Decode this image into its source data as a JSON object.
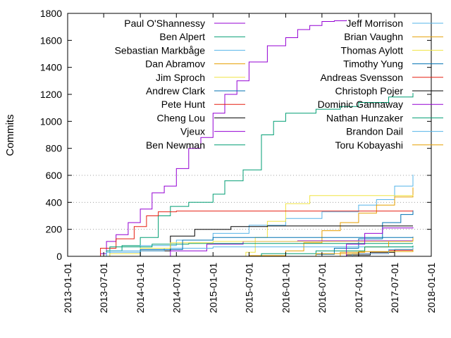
{
  "chart_data": {
    "type": "line",
    "title": "",
    "xlabel": "",
    "ylabel": "Commits",
    "x_range": [
      "2013-01-01",
      "2018-01-01"
    ],
    "x_ticks": [
      "2013-01-01",
      "2013-07-01",
      "2014-01-01",
      "2014-07-01",
      "2015-01-01",
      "2015-07-01",
      "2016-01-01",
      "2016-07-01",
      "2017-01-01",
      "2017-07-01",
      "2018-01-01"
    ],
    "ylim": [
      0,
      1800
    ],
    "y_ticks": [
      0,
      200,
      400,
      600,
      800,
      1000,
      1200,
      1400,
      1600,
      1800
    ],
    "grid": {
      "y": true,
      "y_from": 200,
      "y_to": 600,
      "x": false
    },
    "step": true,
    "legend": "top, two columns",
    "series": [
      {
        "name": "Paul O'Shannessy",
        "color": "#9400d3",
        "points": [
          [
            "2013-05-20",
            0
          ],
          [
            "2013-06-15",
            20
          ],
          [
            "2013-07-15",
            110
          ],
          [
            "2013-09-01",
            160
          ],
          [
            "2013-11-01",
            250
          ],
          [
            "2014-01-01",
            350
          ],
          [
            "2014-03-01",
            470
          ],
          [
            "2014-05-01",
            520
          ],
          [
            "2014-07-01",
            650
          ],
          [
            "2014-09-01",
            800
          ],
          [
            "2014-11-01",
            880
          ],
          [
            "2015-01-01",
            1060
          ],
          [
            "2015-03-01",
            1200
          ],
          [
            "2015-05-01",
            1300
          ],
          [
            "2015-07-01",
            1440
          ],
          [
            "2015-10-01",
            1560
          ],
          [
            "2016-01-01",
            1620
          ],
          [
            "2016-03-01",
            1680
          ],
          [
            "2016-05-01",
            1710
          ],
          [
            "2016-07-01",
            1740
          ],
          [
            "2016-09-01",
            1745
          ],
          [
            "2016-11-01",
            1750
          ]
        ]
      },
      {
        "name": "Ben Alpert",
        "color": "#009e73",
        "points": [
          [
            "2013-06-01",
            0
          ],
          [
            "2013-07-15",
            40
          ],
          [
            "2013-10-01",
            80
          ],
          [
            "2014-01-01",
            140
          ],
          [
            "2014-04-01",
            300
          ],
          [
            "2014-06-01",
            370
          ],
          [
            "2014-09-01",
            400
          ],
          [
            "2015-01-01",
            460
          ],
          [
            "2015-03-01",
            560
          ],
          [
            "2015-06-01",
            640
          ],
          [
            "2015-09-01",
            900
          ],
          [
            "2015-11-01",
            1000
          ],
          [
            "2016-01-01",
            1060
          ],
          [
            "2016-06-01",
            1090
          ],
          [
            "2016-10-01",
            1110
          ],
          [
            "2017-01-01",
            1140
          ],
          [
            "2017-06-01",
            1180
          ],
          [
            "2017-10-01",
            1210
          ]
        ]
      },
      {
        "name": "Sebastian Markbåge",
        "color": "#56b4e9",
        "points": [
          [
            "2013-06-01",
            0
          ],
          [
            "2013-07-15",
            30
          ],
          [
            "2014-01-01",
            80
          ],
          [
            "2014-07-01",
            120
          ],
          [
            "2015-01-01",
            170
          ],
          [
            "2015-07-01",
            230
          ],
          [
            "2016-01-01",
            280
          ],
          [
            "2016-07-01",
            330
          ],
          [
            "2017-01-01",
            380
          ],
          [
            "2017-04-01",
            420
          ],
          [
            "2017-07-01",
            520
          ],
          [
            "2017-10-01",
            605
          ]
        ]
      },
      {
        "name": "Dan Abramov",
        "color": "#e69f00",
        "points": [
          [
            "2015-05-01",
            0
          ],
          [
            "2015-07-01",
            5
          ],
          [
            "2016-01-01",
            40
          ],
          [
            "2016-04-01",
            100
          ],
          [
            "2016-07-01",
            190
          ],
          [
            "2016-10-01",
            250
          ],
          [
            "2017-01-01",
            320
          ],
          [
            "2017-04-01",
            380
          ],
          [
            "2017-07-01",
            440
          ],
          [
            "2017-10-01",
            510
          ]
        ]
      },
      {
        "name": "Jim Sproch",
        "color": "#f0e442",
        "points": [
          [
            "2015-05-01",
            0
          ],
          [
            "2015-06-15",
            30
          ],
          [
            "2015-08-01",
            140
          ],
          [
            "2015-10-01",
            260
          ],
          [
            "2016-01-01",
            390
          ],
          [
            "2016-05-01",
            450
          ],
          [
            "2017-10-01",
            455
          ]
        ]
      },
      {
        "name": "Andrew Clark",
        "color": "#0072b2",
        "points": [
          [
            "2015-12-01",
            0
          ],
          [
            "2016-06-01",
            15
          ],
          [
            "2016-09-01",
            60
          ],
          [
            "2017-01-01",
            130
          ],
          [
            "2017-05-01",
            250
          ],
          [
            "2017-08-01",
            310
          ],
          [
            "2017-10-01",
            340
          ]
        ]
      },
      {
        "name": "Pete Hunt",
        "color": "#e51e10",
        "points": [
          [
            "2013-05-20",
            0
          ],
          [
            "2013-06-15",
            60
          ],
          [
            "2013-09-01",
            130
          ],
          [
            "2013-12-01",
            220
          ],
          [
            "2014-02-01",
            300
          ],
          [
            "2014-04-01",
            330
          ],
          [
            "2014-07-01",
            335
          ],
          [
            "2017-10-01",
            335
          ]
        ]
      },
      {
        "name": "Cheng Lou",
        "color": "#000000",
        "points": [
          [
            "2013-08-01",
            0
          ],
          [
            "2014-01-01",
            40
          ],
          [
            "2014-06-01",
            150
          ],
          [
            "2014-10-01",
            200
          ],
          [
            "2015-04-01",
            220
          ],
          [
            "2015-10-01",
            225
          ],
          [
            "2017-10-01",
            225
          ]
        ]
      },
      {
        "name": "Vjeux",
        "color": "#9400d3",
        "points": [
          [
            "2014-01-01",
            0
          ],
          [
            "2014-06-01",
            40
          ],
          [
            "2014-12-01",
            90
          ],
          [
            "2015-06-01",
            110
          ],
          [
            "2016-03-01",
            115
          ],
          [
            "2017-10-01",
            120
          ]
        ]
      },
      {
        "name": "Ben Newman",
        "color": "#009e73",
        "points": [
          [
            "2013-06-01",
            0
          ],
          [
            "2013-08-01",
            70
          ],
          [
            "2014-03-01",
            90
          ],
          [
            "2014-09-01",
            95
          ],
          [
            "2017-10-01",
            95
          ]
        ]
      },
      {
        "name": "Jeff Morrison",
        "color": "#56b4e9",
        "points": [
          [
            "2013-06-01",
            0
          ],
          [
            "2013-08-01",
            40
          ],
          [
            "2014-05-01",
            60
          ],
          [
            "2015-01-01",
            70
          ],
          [
            "2017-10-01",
            75
          ]
        ]
      },
      {
        "name": "Brian Vaughn",
        "color": "#e69f00",
        "points": [
          [
            "2016-05-01",
            0
          ],
          [
            "2016-10-01",
            30
          ],
          [
            "2017-02-01",
            70
          ],
          [
            "2017-06-01",
            110
          ],
          [
            "2017-10-01",
            140
          ]
        ]
      },
      {
        "name": "Thomas Aylott",
        "color": "#f0e442",
        "points": [
          [
            "2013-06-01",
            0
          ],
          [
            "2013-08-01",
            20
          ],
          [
            "2014-01-01",
            60
          ],
          [
            "2014-06-01",
            100
          ],
          [
            "2015-01-01",
            110
          ],
          [
            "2017-10-01",
            115
          ]
        ]
      },
      {
        "name": "Timothy Yung",
        "color": "#0072b2",
        "points": [
          [
            "2013-07-01",
            0
          ],
          [
            "2014-01-01",
            50
          ],
          [
            "2014-08-01",
            120
          ],
          [
            "2015-01-01",
            140
          ],
          [
            "2017-10-01",
            145
          ]
        ]
      },
      {
        "name": "Andreas Svensson",
        "color": "#e51e10",
        "points": [
          [
            "2016-09-01",
            0
          ],
          [
            "2017-01-01",
            20
          ],
          [
            "2017-06-01",
            45
          ],
          [
            "2017-10-01",
            55
          ]
        ]
      },
      {
        "name": "Christoph Pojer",
        "color": "#000000",
        "points": [
          [
            "2016-06-01",
            0
          ],
          [
            "2016-11-01",
            10
          ],
          [
            "2017-03-01",
            30
          ],
          [
            "2017-07-01",
            50
          ],
          [
            "2017-10-01",
            60
          ]
        ]
      },
      {
        "name": "Dominic Gannaway",
        "color": "#9400d3",
        "points": [
          [
            "2016-07-01",
            0
          ],
          [
            "2016-11-01",
            90
          ],
          [
            "2017-02-01",
            170
          ],
          [
            "2017-05-01",
            210
          ],
          [
            "2017-10-01",
            215
          ]
        ]
      },
      {
        "name": "Nathan Hunzaker",
        "color": "#009e73",
        "points": [
          [
            "2015-01-01",
            0
          ],
          [
            "2015-09-01",
            20
          ],
          [
            "2016-06-01",
            40
          ],
          [
            "2017-02-01",
            70
          ],
          [
            "2017-10-01",
            80
          ]
        ]
      },
      {
        "name": "Brandon Dail",
        "color": "#56b4e9",
        "points": [
          [
            "2016-06-01",
            0
          ],
          [
            "2016-12-01",
            20
          ],
          [
            "2017-06-01",
            50
          ],
          [
            "2017-10-01",
            65
          ]
        ]
      },
      {
        "name": "Toru Kobayashi",
        "color": "#e69f00",
        "points": [
          [
            "2015-10-01",
            0
          ],
          [
            "2016-06-01",
            20
          ],
          [
            "2017-01-01",
            35
          ],
          [
            "2017-10-01",
            50
          ]
        ]
      }
    ]
  }
}
